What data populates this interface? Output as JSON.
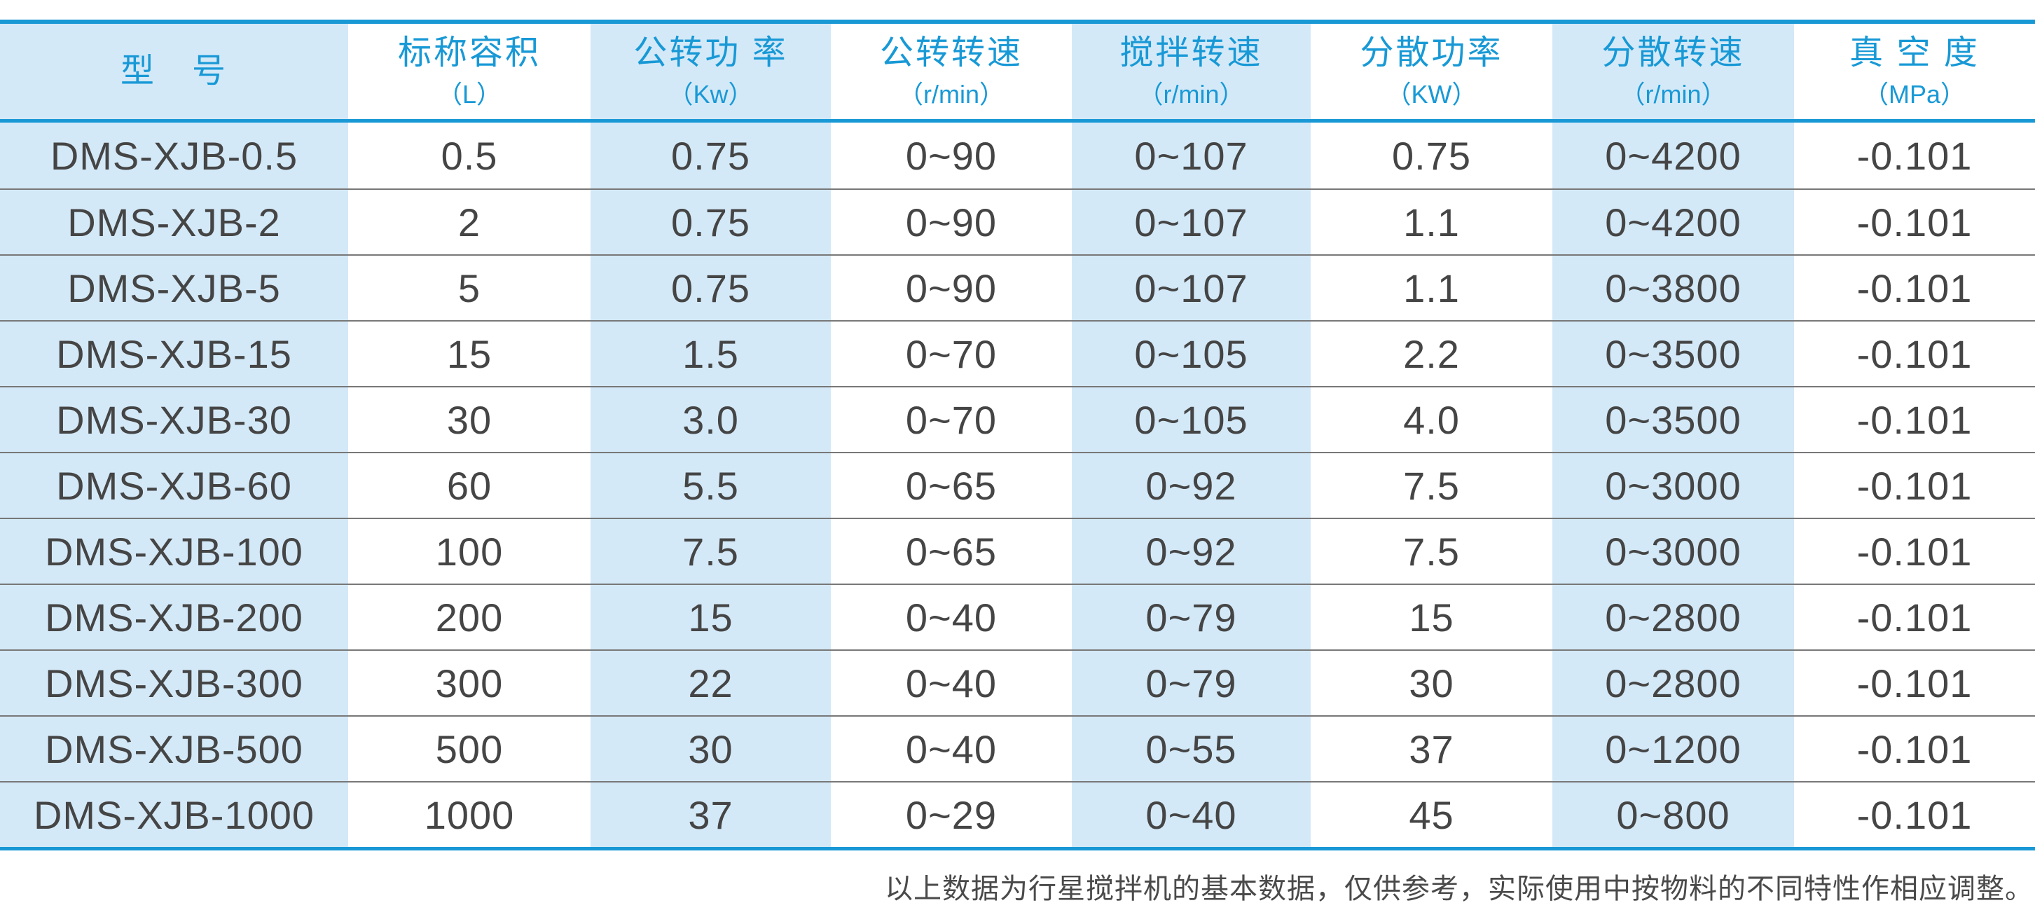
{
  "colors": {
    "accent": "#1898d5",
    "cell_blue": "#d4e9f8",
    "header_text": "#1899d6",
    "body_text": "#454545",
    "row_line": "#787878",
    "note_text": "#4a4a4a"
  },
  "table": {
    "columns": [
      {
        "id": "model",
        "label": "型　号",
        "unit": "",
        "shaded": true
      },
      {
        "id": "capacity",
        "label": "标称容积",
        "unit": "（L）",
        "shaded": false
      },
      {
        "id": "rev-power",
        "label": "公转功 率",
        "unit": "（Kw）",
        "shaded": true
      },
      {
        "id": "rev-speed",
        "label": "公转转速",
        "unit": "（r/min）",
        "shaded": false
      },
      {
        "id": "stir-speed",
        "label": "搅拌转速",
        "unit": "（r/min）",
        "shaded": true
      },
      {
        "id": "disp-power",
        "label": "分散功率",
        "unit": "（KW）",
        "shaded": false
      },
      {
        "id": "disp-speed",
        "label": "分散转速",
        "unit": "（r/min）",
        "shaded": true
      },
      {
        "id": "vacuum",
        "label": "真 空 度",
        "unit": "（MPa）",
        "shaded": false
      }
    ],
    "rows": [
      [
        "DMS-XJB-0.5",
        "0.5",
        "0.75",
        "0~90",
        "0~107",
        "0.75",
        "0~4200",
        "-0.101"
      ],
      [
        "DMS-XJB-2",
        "2",
        "0.75",
        "0~90",
        "0~107",
        "1.1",
        "0~4200",
        "-0.101"
      ],
      [
        "DMS-XJB-5",
        "5",
        "0.75",
        "0~90",
        "0~107",
        "1.1",
        "0~3800",
        "-0.101"
      ],
      [
        "DMS-XJB-15",
        "15",
        "1.5",
        "0~70",
        "0~105",
        "2.2",
        "0~3500",
        "-0.101"
      ],
      [
        "DMS-XJB-30",
        "30",
        "3.0",
        "0~70",
        "0~105",
        "4.0",
        "0~3500",
        "-0.101"
      ],
      [
        "DMS-XJB-60",
        "60",
        "5.5",
        "0~65",
        "0~92",
        "7.5",
        "0~3000",
        "-0.101"
      ],
      [
        "DMS-XJB-100",
        "100",
        "7.5",
        "0~65",
        "0~92",
        "7.5",
        "0~3000",
        "-0.101"
      ],
      [
        "DMS-XJB-200",
        "200",
        "15",
        "0~40",
        "0~79",
        "15",
        "0~2800",
        "-0.101"
      ],
      [
        "DMS-XJB-300",
        "300",
        "22",
        "0~40",
        "0~79",
        "30",
        "0~2800",
        "-0.101"
      ],
      [
        "DMS-XJB-500",
        "500",
        "30",
        "0~40",
        "0~55",
        "37",
        "0~1200",
        "-0.101"
      ],
      [
        "DMS-XJB-1000",
        "1000",
        "37",
        "0~29",
        "0~40",
        "45",
        "0~800",
        "-0.101"
      ]
    ]
  },
  "footer": {
    "note": "以上数据为行星搅拌机的基本数据，仅供参考，实际使用中按物料的不同特性作相应调整。"
  }
}
